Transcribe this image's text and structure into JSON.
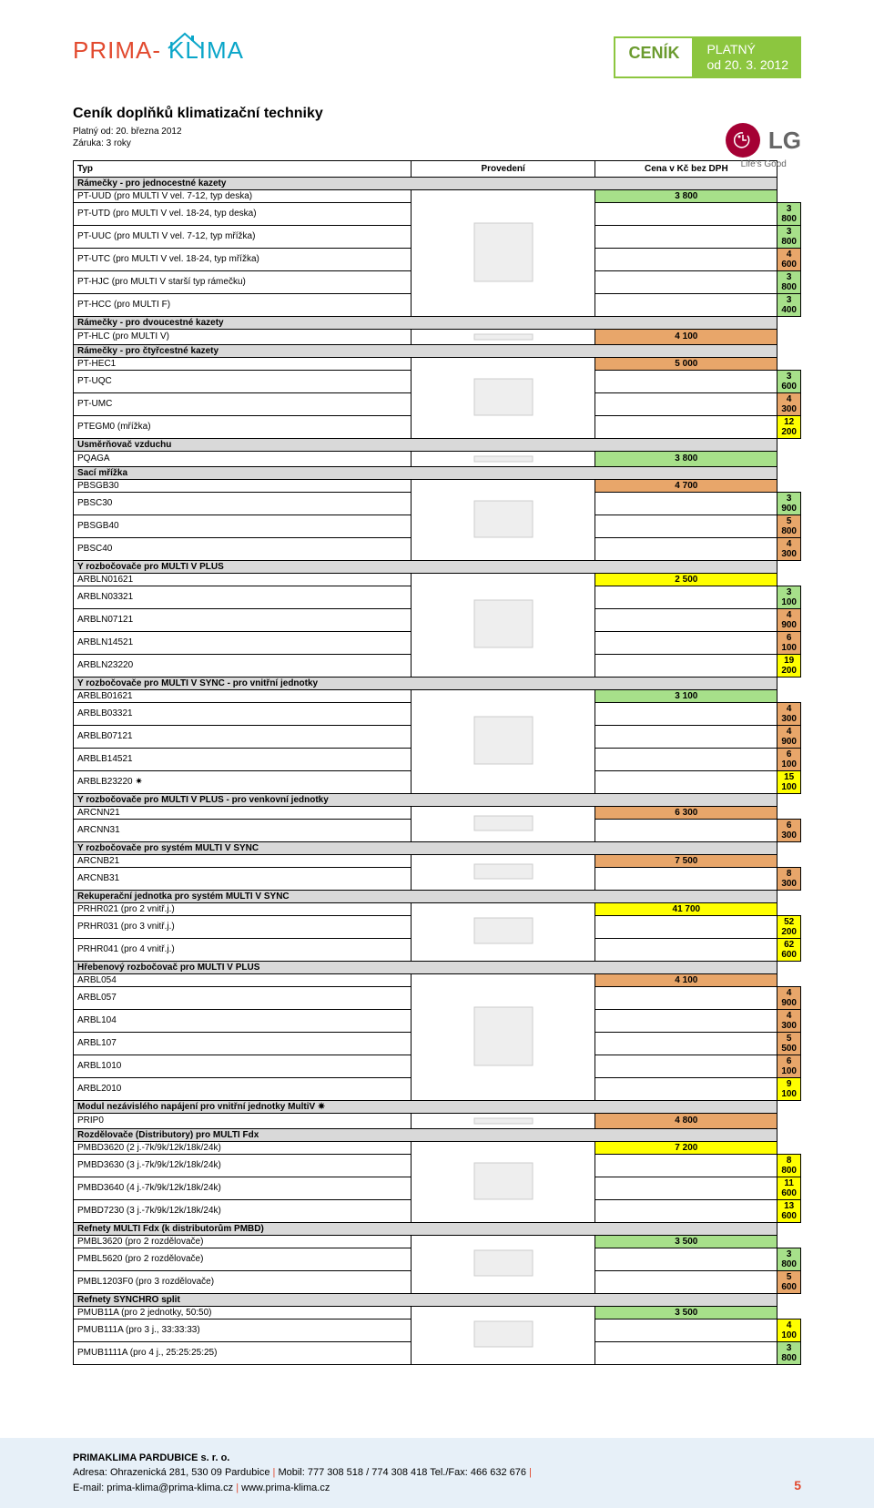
{
  "logo": {
    "part1": "PRIMA-",
    "part2": "KLIMA"
  },
  "badge": {
    "left": "CENÍK",
    "right1": "PLATNÝ",
    "right2": "od 20. 3. 2012"
  },
  "title": "Ceník doplňků klimatizační techniky",
  "subtitle1": "Platný od:  20. března  2012",
  "subtitle2": "Záruka:      3 roky",
  "lg": {
    "text": "LG",
    "tagline": "Life's Good"
  },
  "headers": {
    "typ": "Typ",
    "provedeni": "Provedení",
    "cena": "Cena v Kč bez DPH"
  },
  "colors": {
    "gray": "#d9d9d9",
    "green": "#a7e08a",
    "orange": "#e8a66a",
    "yellow": "#ffff00"
  },
  "rows": [
    {
      "type": "section",
      "label": "Rámečky - pro jednocestné kazety"
    },
    {
      "type": "item",
      "label": "PT-UUD (pro MULTI V vel. 7-12, typ deska)",
      "price": "3 800",
      "color": "green",
      "imgGroup": "g1"
    },
    {
      "type": "item",
      "label": "PT-UTD (pro MULTI V vel. 18-24, typ deska)",
      "price": "3 800",
      "color": "green"
    },
    {
      "type": "item",
      "label": "PT-UUC (pro MULTI V vel. 7-12, typ mřížka)",
      "price": "3 800",
      "color": "green"
    },
    {
      "type": "item",
      "label": "PT-UTC (pro MULTI V vel. 18-24, typ mřížka)",
      "price": "4 600",
      "color": "orange"
    },
    {
      "type": "item",
      "label": "PT-HJC (pro MULTI V starší typ rámečku)",
      "price": "3 800",
      "color": "green"
    },
    {
      "type": "item",
      "label": "PT-HCC (pro MULTI F)",
      "price": "3 400",
      "color": "green",
      "imgGroupEnd": true
    },
    {
      "type": "section",
      "label": "Rámečky - pro dvoucestné kazety"
    },
    {
      "type": "item",
      "label": "PT-HLC (pro MULTI V)",
      "price": "4 100",
      "color": "orange",
      "imgGroup": "g2",
      "imgGroupEnd": true
    },
    {
      "type": "section",
      "label": "Rámečky - pro čtyřcestné kazety"
    },
    {
      "type": "item",
      "label": "PT-HEC1",
      "price": "5 000",
      "color": "orange",
      "imgGroup": "g3"
    },
    {
      "type": "item",
      "label": "PT-UQC",
      "price": "3 600",
      "color": "green"
    },
    {
      "type": "item",
      "label": "PT-UMC",
      "price": "4 300",
      "color": "orange"
    },
    {
      "type": "item",
      "label": "PTEGM0 (mřížka)",
      "price": "12 200",
      "color": "yellow",
      "imgGroupEnd": true
    },
    {
      "type": "section",
      "label": "Usměrňovač vzduchu"
    },
    {
      "type": "item",
      "label": "PQAGA",
      "price": "3 800",
      "color": "green",
      "imgGroup": "g4",
      "imgGroupEnd": true
    },
    {
      "type": "section",
      "label": "Sací mřížka"
    },
    {
      "type": "item",
      "label": "PBSGB30",
      "price": "4 700",
      "color": "orange",
      "imgGroup": "g5"
    },
    {
      "type": "item",
      "label": "PBSC30",
      "price": "3 900",
      "color": "green"
    },
    {
      "type": "item",
      "label": "PBSGB40",
      "price": "5 800",
      "color": "orange"
    },
    {
      "type": "item",
      "label": "PBSC40",
      "price": "4 300",
      "color": "orange",
      "imgGroupEnd": true
    },
    {
      "type": "section",
      "label": "Y rozbočovače pro MULTI V PLUS"
    },
    {
      "type": "item",
      "label": "ARBLN01621",
      "price": "2 500",
      "color": "yellow",
      "imgGroup": "g6"
    },
    {
      "type": "item",
      "label": "ARBLN03321",
      "price": "3 100",
      "color": "green"
    },
    {
      "type": "item",
      "label": "ARBLN07121",
      "price": "4 900",
      "color": "orange"
    },
    {
      "type": "item",
      "label": "ARBLN14521",
      "price": "6 100",
      "color": "orange"
    },
    {
      "type": "item",
      "label": "ARBLN23220",
      "price": "19 200",
      "color": "yellow",
      "imgGroupEnd": true
    },
    {
      "type": "section",
      "label": "Y rozbočovače pro MULTI V SYNC - pro vnitřní jednotky"
    },
    {
      "type": "item",
      "label": "ARBLB01621",
      "price": "3 100",
      "color": "green",
      "imgGroup": "g7"
    },
    {
      "type": "item",
      "label": "ARBLB03321",
      "price": "4 300",
      "color": "orange"
    },
    {
      "type": "item",
      "label": "ARBLB07121",
      "price": "4 900",
      "color": "orange"
    },
    {
      "type": "item",
      "label": "ARBLB14521",
      "price": "6 100",
      "color": "orange"
    },
    {
      "type": "item",
      "label": "ARBLB23220  ✷",
      "price": "15 100",
      "color": "yellow",
      "imgGroupEnd": true
    },
    {
      "type": "section",
      "label": "Y rozbočovače pro MULTI V PLUS - pro venkovní jednotky"
    },
    {
      "type": "item",
      "label": "ARCNN21",
      "price": "6 300",
      "color": "orange",
      "imgGroup": "g8"
    },
    {
      "type": "item",
      "label": "ARCNN31",
      "price": "6 300",
      "color": "orange",
      "imgGroupEnd": true
    },
    {
      "type": "section",
      "label": "Y rozbočovače pro systém MULTI V SYNC"
    },
    {
      "type": "item",
      "label": "ARCNB21",
      "price": "7 500",
      "color": "orange",
      "imgGroup": "g9"
    },
    {
      "type": "item",
      "label": "ARCNB31",
      "price": "8 300",
      "color": "orange",
      "imgGroupEnd": true
    },
    {
      "type": "section",
      "label": "Rekuperační jednotka pro systém MULTI V SYNC"
    },
    {
      "type": "item",
      "label": "PRHR021 (pro 2 vnitř.j.)",
      "price": "41 700",
      "color": "yellow",
      "imgGroup": "g10"
    },
    {
      "type": "item",
      "label": "PRHR031 (pro 3 vnitř.j.)",
      "price": "52 200",
      "color": "yellow"
    },
    {
      "type": "item",
      "label": "PRHR041 (pro 4 vnitř.j.)",
      "price": "62 600",
      "color": "yellow",
      "imgGroupEnd": true
    },
    {
      "type": "section",
      "label": "Hřebenový rozbočovač pro MULTI V PLUS"
    },
    {
      "type": "item",
      "label": "ARBL054",
      "price": "4 100",
      "color": "orange",
      "imgGroup": "g11"
    },
    {
      "type": "item",
      "label": "ARBL057",
      "price": "4 900",
      "color": "orange"
    },
    {
      "type": "item",
      "label": "ARBL104",
      "price": "4 300",
      "color": "orange"
    },
    {
      "type": "item",
      "label": "ARBL107",
      "price": "5 500",
      "color": "orange"
    },
    {
      "type": "item",
      "label": "ARBL1010",
      "price": "6 100",
      "color": "orange"
    },
    {
      "type": "item",
      "label": "ARBL2010",
      "price": "9 100",
      "color": "yellow",
      "imgGroupEnd": true
    },
    {
      "type": "section",
      "label": "Modul nezávislého napájení pro vnitřní jednotky MultiV  ✷"
    },
    {
      "type": "item",
      "label": "PRIP0",
      "price": "4 800",
      "color": "orange",
      "imgGroup": "g12",
      "imgGroupEnd": true
    },
    {
      "type": "section",
      "label": "Rozdělovače (Distributory) pro MULTI Fdx"
    },
    {
      "type": "item",
      "label": "PMBD3620 (2 j.-7k/9k/12k/18k/24k)",
      "price": "7 200",
      "color": "yellow",
      "imgGroup": "g13"
    },
    {
      "type": "item",
      "label": "PMBD3630 (3 j.-7k/9k/12k/18k/24k)",
      "price": "8 800",
      "color": "yellow"
    },
    {
      "type": "item",
      "label": "PMBD3640 (4 j.-7k/9k/12k/18k/24k)",
      "price": "11 600",
      "color": "yellow"
    },
    {
      "type": "item",
      "label": "PMBD7230  (3 j.-7k/9k/12k/18k/24k)",
      "price": "13 600",
      "color": "yellow",
      "imgGroupEnd": true
    },
    {
      "type": "section",
      "label": "Refnety MULTI Fdx (k distributorům PMBD)"
    },
    {
      "type": "item",
      "label": "PMBL3620       (pro 2 rozdělovače)",
      "price": "3 500",
      "color": "green",
      "imgGroup": "g14"
    },
    {
      "type": "item",
      "label": "PMBL5620       (pro 2 rozdělovače)",
      "price": "3 800",
      "color": "green"
    },
    {
      "type": "item",
      "label": "PMBL1203F0 (pro 3 rozdělovače)",
      "price": "5 600",
      "color": "orange",
      "imgGroupEnd": true
    },
    {
      "type": "section",
      "label": "Refnety SYNCHRO split"
    },
    {
      "type": "item",
      "label": "PMUB11A     (pro 2 jednotky, 50:50)",
      "price": "3 500",
      "color": "green",
      "imgGroup": "g15"
    },
    {
      "type": "item",
      "label": "PMUB111A  (pro 3 j., 33:33:33)",
      "price": "4 100",
      "color": "yellow"
    },
    {
      "type": "item",
      "label": "PMUB1111A (pro 4 j., 25:25:25:25)",
      "price": "3 800",
      "color": "green",
      "imgGroupEnd": true
    }
  ],
  "footer": {
    "company": "PRIMAKLIMA PARDUBICE s. r. o.",
    "address": "Adresa: Ohrazenická 281, 530 09 Pardubice",
    "mobile": "Mobil: 777 308 518 / 774 308 418 Tel./Fax: 466 632 676",
    "email_label": "E-mail: ",
    "email": "prima-klima@prima-klima.cz",
    "web": "www.prima-klima.cz",
    "pagenum": "5"
  }
}
